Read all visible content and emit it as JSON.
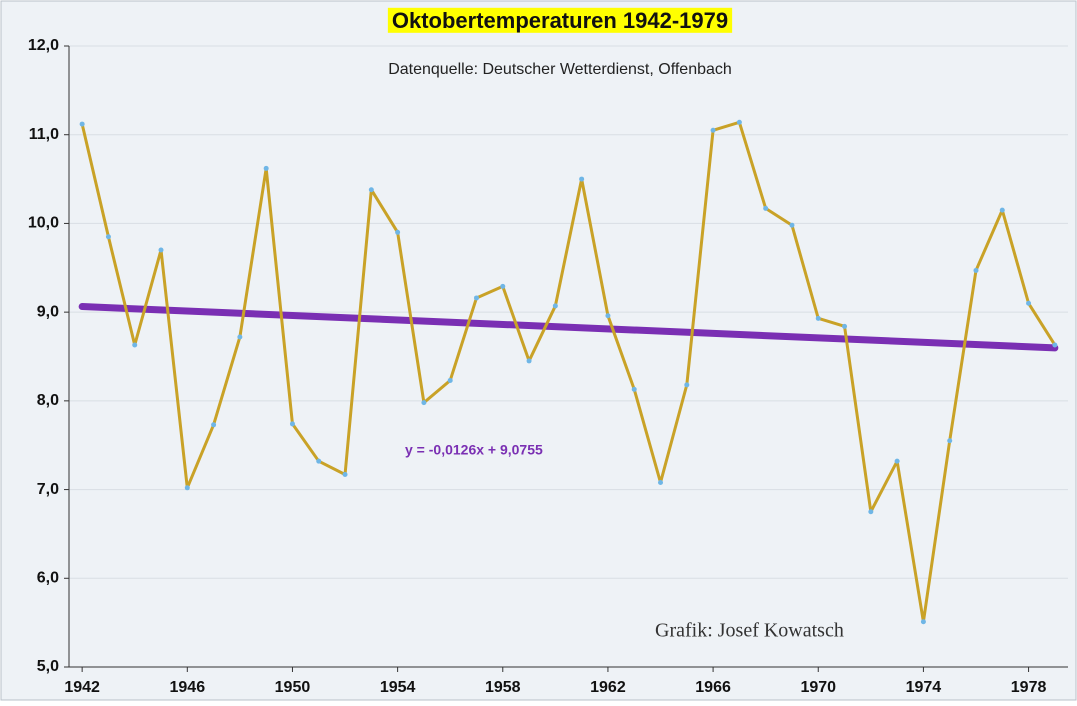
{
  "chart_data": {
    "type": "line",
    "title": "Oktobertemperaturen 1942-1979",
    "subtitle": "Datenquelle: Deutscher Wetterdienst, Offenbach",
    "annotations": [
      "y = -0,0126x + 9,0755",
      "Grafik: Josef Kowatsch"
    ],
    "x": [
      1942,
      1943,
      1944,
      1945,
      1946,
      1947,
      1948,
      1949,
      1950,
      1951,
      1952,
      1953,
      1954,
      1955,
      1956,
      1957,
      1958,
      1959,
      1960,
      1961,
      1962,
      1963,
      1964,
      1965,
      1966,
      1967,
      1968,
      1969,
      1970,
      1971,
      1972,
      1973,
      1974,
      1975,
      1976,
      1977,
      1978,
      1979
    ],
    "series": [
      {
        "color": "#c9a227",
        "marker_color": "#6fb6e6",
        "values": [
          11.12,
          9.85,
          8.63,
          9.7,
          7.02,
          7.73,
          8.72,
          10.62,
          7.74,
          7.32,
          7.17,
          10.38,
          9.9,
          7.98,
          8.23,
          9.16,
          9.29,
          8.45,
          9.07,
          10.5,
          8.96,
          8.13,
          7.08,
          8.18,
          11.05,
          11.14,
          10.17,
          9.98,
          8.93,
          8.84,
          6.75,
          7.32,
          5.51,
          7.55,
          9.47,
          10.15,
          9.1,
          8.63
        ]
      }
    ],
    "trendline": {
      "x": [
        1942,
        1979
      ],
      "values": [
        9.063,
        8.597
      ],
      "color": "#7a2fb3"
    },
    "xlim": [
      1941.5,
      1979.5
    ],
    "xticks": [
      1942,
      1946,
      1950,
      1954,
      1958,
      1962,
      1966,
      1970,
      1974,
      1978
    ],
    "ylim": [
      5,
      12
    ],
    "yticks": [
      {
        "value": 5,
        "label": "5,0"
      },
      {
        "value": 6,
        "label": "6,0"
      },
      {
        "value": 7,
        "label": "7,0"
      },
      {
        "value": 8,
        "label": "8,0"
      },
      {
        "value": 9,
        "label": "9,0"
      },
      {
        "value": 10,
        "label": "10,0"
      },
      {
        "value": 11,
        "label": "11,0"
      },
      {
        "value": 12,
        "label": "12,0"
      }
    ],
    "grid": true
  }
}
